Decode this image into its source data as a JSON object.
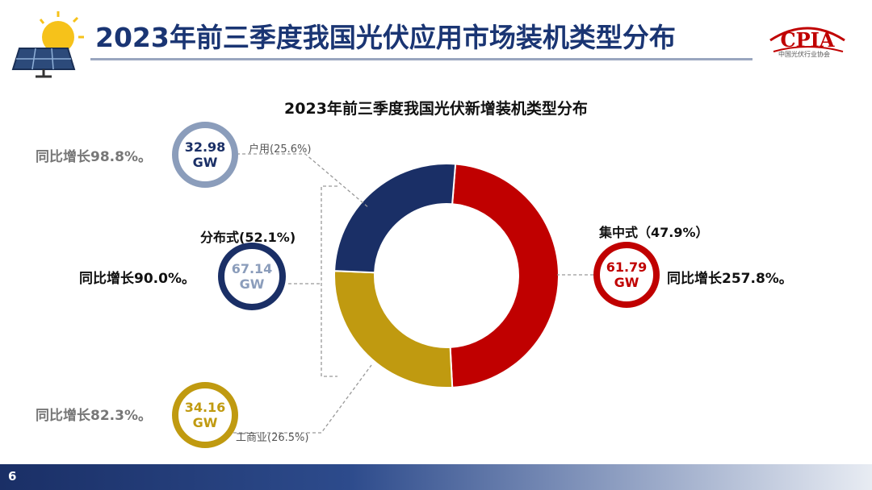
{
  "header": {
    "title": "2023年前三季度我国光伏应用市场装机类型分布",
    "logo_text": "CPIA",
    "logo_subtext": "中国光伏行业协会"
  },
  "colors": {
    "centralized": "#c00000",
    "residential": "#1a2f66",
    "commercial": "#c09a10",
    "distributed_ring": "#1a2f66",
    "residential_ring": "#8b9dbb"
  },
  "chart_data": {
    "type": "pie",
    "donut": true,
    "title": "2023年前三季度我国光伏新增装机类型分布",
    "slices": [
      {
        "name": "集中式",
        "percent": 47.9,
        "value_gw": 61.79
      },
      {
        "name": "工商业",
        "percent": 26.5,
        "value_gw": 34.16
      },
      {
        "name": "户用",
        "percent": 25.6,
        "value_gw": 32.98
      }
    ],
    "group": {
      "name": "分布式",
      "percent": 52.1,
      "value_gw": 67.14,
      "members": [
        "工商业",
        "户用"
      ]
    }
  },
  "labels": {
    "residential": {
      "cat": "户用(25.6%)",
      "value": "32.98",
      "unit": "GW",
      "growth": "同比增长98.8%。"
    },
    "distributed": {
      "cat": "分布式(52.1%)",
      "value": "67.14",
      "unit": "GW",
      "growth": "同比增长90.0%。"
    },
    "commercial": {
      "cat": "工商业(26.5%)",
      "value": "34.16",
      "unit": "GW",
      "growth": "同比增长82.3%。"
    },
    "centralized": {
      "cat": "集中式（47.9%）",
      "value": "61.79",
      "unit": "GW",
      "growth": "同比增长257.8%。"
    }
  },
  "footer": {
    "page": "6"
  }
}
